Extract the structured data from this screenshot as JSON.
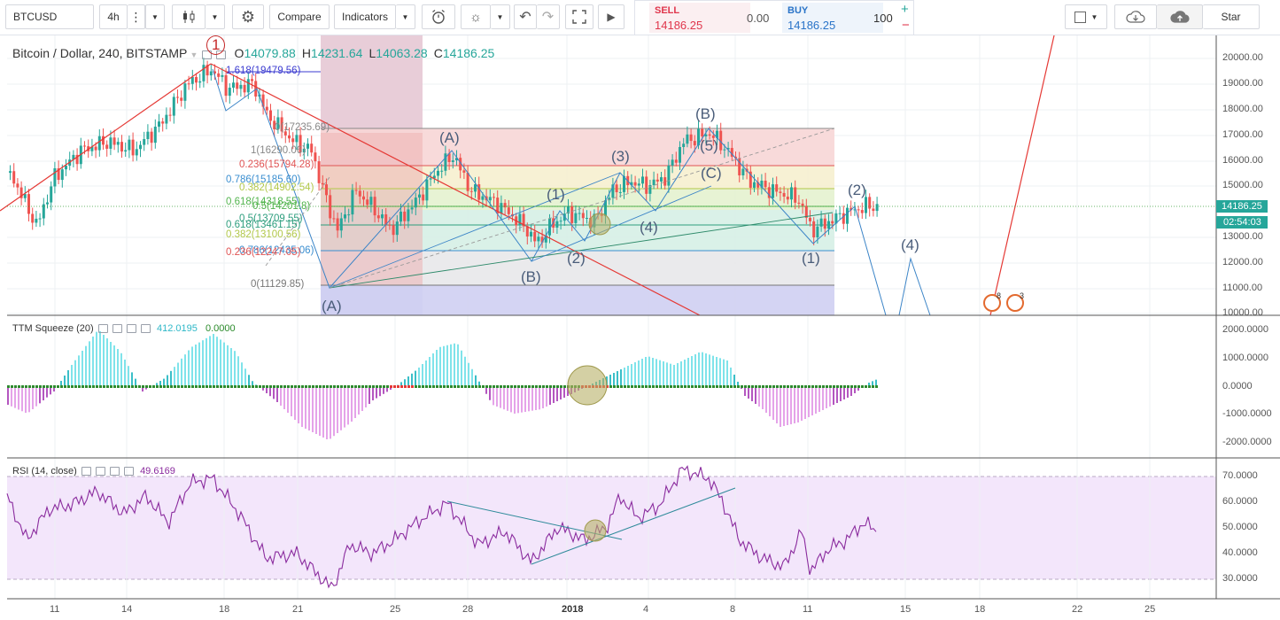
{
  "toolbar": {
    "symbol": "BTCUSD",
    "interval": "4h",
    "compare_label": "Compare",
    "indicators_label": "Indicators",
    "star_label": "Star"
  },
  "trade": {
    "sell_label": "SELL",
    "sell_price": "14186.25",
    "spread": "0.00",
    "buy_label": "BUY",
    "buy_price": "14186.25",
    "quantity": "100"
  },
  "main_chart": {
    "legend": {
      "title": "Bitcoin / Dollar, 240, BITSTAMP",
      "o_label": "O",
      "o_value": "14079.88",
      "h_label": "H",
      "h_value": "14231.64",
      "l_label": "L",
      "l_value": "14063.28",
      "c_label": "C",
      "c_value": "14186.25"
    },
    "price_axis": [
      "20000.00",
      "19000.00",
      "18000.00",
      "17000.00",
      "16000.00",
      "15000.00",
      "13000.00",
      "12000.00",
      "11000.00",
      "10000.00"
    ],
    "last_price": "14186.25",
    "countdown": "02:54:03",
    "fib_left": [
      "1.618(19479.56)",
      "0(17235.69)",
      "1(16290.06)",
      "0.236(15794.28)",
      "0.786(15185.60)",
      "0.382(14902.54)",
      "0.618(14318.55)",
      "0.5(14201.8)",
      "0.5(13709.55)",
      "0.618(13461.15)",
      "0.382(13100.56)",
      "0.786(12435.06)",
      "0.236(12247.05)",
      "0(11129.85)"
    ],
    "wave_labels": [
      "1",
      "(A)",
      "(A)",
      "(1)",
      "(B)",
      "(2)",
      "(3)",
      "(4)",
      "(B)",
      "(5)",
      "(C)",
      "(1)",
      "(2)",
      "(4)"
    ],
    "event_labels": [
      "8",
      "3"
    ]
  },
  "ttm": {
    "name": "TTM Squeeze (20)",
    "value1": "412.0195",
    "value2": "0.0000",
    "axis": [
      "2000.0000",
      "1000.0000",
      "0.0000",
      "-1000.0000",
      "-2000.0000"
    ]
  },
  "rsi": {
    "name": "RSI (14, close)",
    "value": "49.6169",
    "axis": [
      "70.0000",
      "60.0000",
      "50.0000",
      "40.0000",
      "30.0000"
    ]
  },
  "time_axis": [
    "11",
    "14",
    "18",
    "21",
    "25",
    "28",
    "2018",
    "4",
    "8",
    "11",
    "15",
    "18",
    "22",
    "25"
  ]
}
